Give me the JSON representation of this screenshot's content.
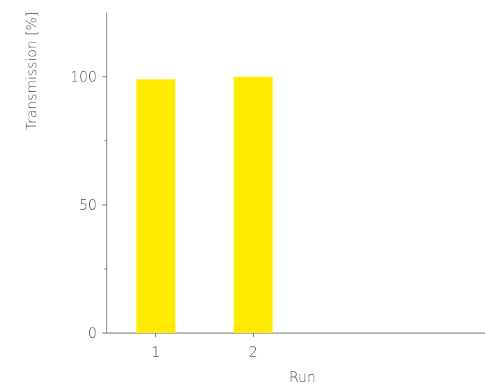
{
  "chart_data": {
    "type": "bar",
    "categories": [
      "1",
      "2"
    ],
    "values": [
      99,
      100
    ],
    "xlabel": "Run",
    "ylabel": "Transmission [%]",
    "ylim": [
      0,
      125
    ],
    "yticks": [
      0,
      50,
      100
    ],
    "yticks_minor": [
      25,
      75
    ],
    "grid": false,
    "legend": "none",
    "bar_color": "#FFEB00",
    "axis_color": "#555555"
  }
}
